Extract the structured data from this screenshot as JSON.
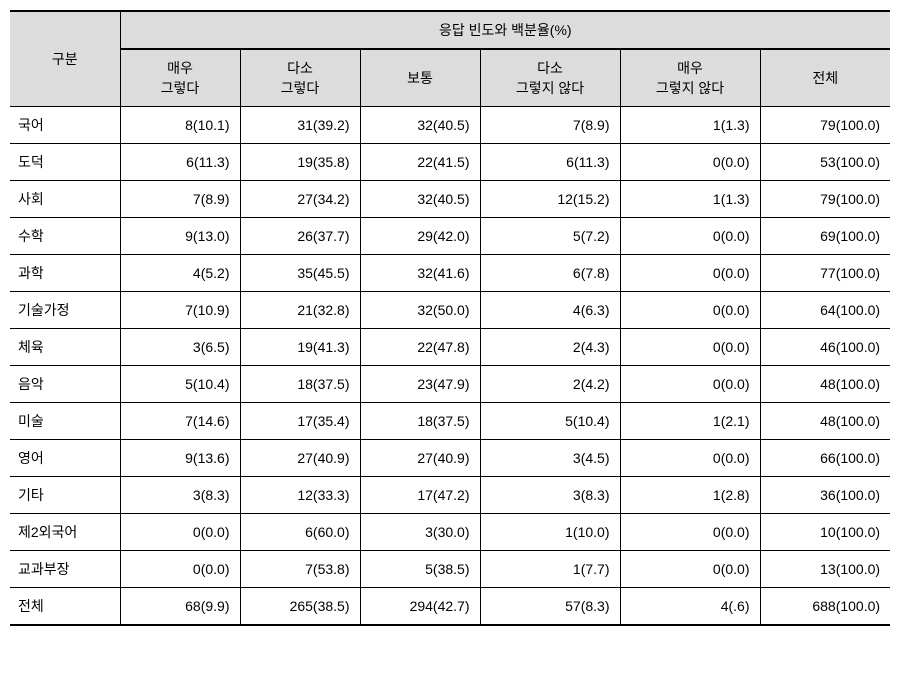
{
  "table": {
    "header": {
      "corner": "구분",
      "span": "응답 빈도와 백분율(%)",
      "cols": [
        "매우\n그렇다",
        "다소\n그렇다",
        "보통",
        "다소\n그렇지 않다",
        "매우\n그렇지 않다",
        "전체"
      ]
    },
    "rows": [
      {
        "label": "국어",
        "cells": [
          "8(10.1)",
          "31(39.2)",
          "32(40.5)",
          "7(8.9)",
          "1(1.3)",
          "79(100.0)"
        ]
      },
      {
        "label": "도덕",
        "cells": [
          "6(11.3)",
          "19(35.8)",
          "22(41.5)",
          "6(11.3)",
          "0(0.0)",
          "53(100.0)"
        ]
      },
      {
        "label": "사회",
        "cells": [
          "7(8.9)",
          "27(34.2)",
          "32(40.5)",
          "12(15.2)",
          "1(1.3)",
          "79(100.0)"
        ]
      },
      {
        "label": "수학",
        "cells": [
          "9(13.0)",
          "26(37.7)",
          "29(42.0)",
          "5(7.2)",
          "0(0.0)",
          "69(100.0)"
        ]
      },
      {
        "label": "과학",
        "cells": [
          "4(5.2)",
          "35(45.5)",
          "32(41.6)",
          "6(7.8)",
          "0(0.0)",
          "77(100.0)"
        ]
      },
      {
        "label": "기술가정",
        "cells": [
          "7(10.9)",
          "21(32.8)",
          "32(50.0)",
          "4(6.3)",
          "0(0.0)",
          "64(100.0)"
        ]
      },
      {
        "label": "체육",
        "cells": [
          "3(6.5)",
          "19(41.3)",
          "22(47.8)",
          "2(4.3)",
          "0(0.0)",
          "46(100.0)"
        ]
      },
      {
        "label": "음악",
        "cells": [
          "5(10.4)",
          "18(37.5)",
          "23(47.9)",
          "2(4.2)",
          "0(0.0)",
          "48(100.0)"
        ]
      },
      {
        "label": "미술",
        "cells": [
          "7(14.6)",
          "17(35.4)",
          "18(37.5)",
          "5(10.4)",
          "1(2.1)",
          "48(100.0)"
        ]
      },
      {
        "label": "영어",
        "cells": [
          "9(13.6)",
          "27(40.9)",
          "27(40.9)",
          "3(4.5)",
          "0(0.0)",
          "66(100.0)"
        ]
      },
      {
        "label": "기타",
        "cells": [
          "3(8.3)",
          "12(33.3)",
          "17(47.2)",
          "3(8.3)",
          "1(2.8)",
          "36(100.0)"
        ]
      },
      {
        "label": "제2외국어",
        "cells": [
          "0(0.0)",
          "6(60.0)",
          "3(30.0)",
          "1(10.0)",
          "0(0.0)",
          "10(100.0)"
        ]
      },
      {
        "label": "교과부장",
        "cells": [
          "0(0.0)",
          "7(53.8)",
          "5(38.5)",
          "1(7.7)",
          "0(0.0)",
          "13(100.0)"
        ]
      },
      {
        "label": "전체",
        "cells": [
          "68(9.9)",
          "265(38.5)",
          "294(42.7)",
          "57(8.3)",
          "4(.6)",
          "688(100.0)"
        ]
      }
    ]
  },
  "style": {
    "header_bg": "#dcdcdc",
    "border_color": "#000000",
    "font_size": 14
  }
}
